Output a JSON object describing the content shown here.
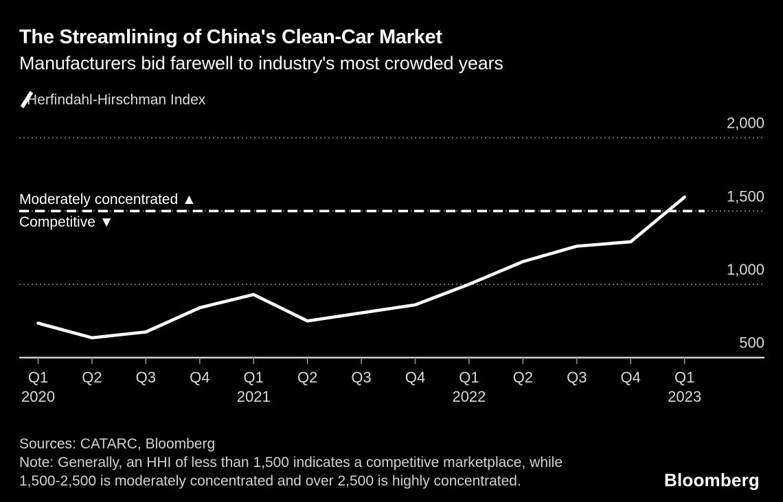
{
  "header": {
    "title": "The Streamlining of China's Clean-Car Market",
    "subtitle": "Manufacturers bid farewell to industry's most crowded years"
  },
  "legend": {
    "series_label": "Herfindahl-Hirschman Index",
    "swatch_icon": "line-slash-icon"
  },
  "annotations": {
    "above_threshold": "Moderately concentrated ▲",
    "below_threshold": "Competitive ▼"
  },
  "footer": {
    "sources": "Sources: CATARC, Bloomberg",
    "note_line1": "Note: Generally, an HHI of less than 1,500 indicates a competitive marketplace, while",
    "note_line2": "1,500-2,500 is moderately concentrated and over 2,500 is highly concentrated.",
    "logo": "Bloomberg"
  },
  "colors": {
    "background": "#000000",
    "data_line": "#ffffff",
    "threshold_line": "#ffffff",
    "gridline": "#707070",
    "axis_line": "#cfcfcf",
    "tick": "#9a9a9a",
    "axis_label": "#d9d9d9"
  },
  "chart_data": {
    "type": "line",
    "title": "The Streamlining of China's Clean-Car Market",
    "series_name": "Herfindahl-Hirschman Index",
    "x_ticks": [
      {
        "quarter": "Q1",
        "year": "2020"
      },
      {
        "quarter": "Q2",
        "year": ""
      },
      {
        "quarter": "Q3",
        "year": ""
      },
      {
        "quarter": "Q4",
        "year": ""
      },
      {
        "quarter": "Q1",
        "year": "2021"
      },
      {
        "quarter": "Q2",
        "year": ""
      },
      {
        "quarter": "Q3",
        "year": ""
      },
      {
        "quarter": "Q4",
        "year": ""
      },
      {
        "quarter": "Q1",
        "year": "2022"
      },
      {
        "quarter": "Q2",
        "year": ""
      },
      {
        "quarter": "Q3",
        "year": ""
      },
      {
        "quarter": "Q4",
        "year": ""
      },
      {
        "quarter": "Q1",
        "year": "2023"
      }
    ],
    "values": [
      735,
      635,
      675,
      840,
      930,
      750,
      805,
      860,
      1000,
      1155,
      1260,
      1290,
      1595
    ],
    "y_ticks": [
      {
        "value": 2000,
        "label": "2,000"
      },
      {
        "value": 1500,
        "label": "1,500"
      },
      {
        "value": 1000,
        "label": "1,000"
      },
      {
        "value": 500,
        "label": "500"
      }
    ],
    "ylim": [
      500,
      2100
    ],
    "threshold_value": 1500,
    "grid": "dotted horizontal",
    "legend_position": "top-left",
    "ylabel": "",
    "xlabel": ""
  }
}
